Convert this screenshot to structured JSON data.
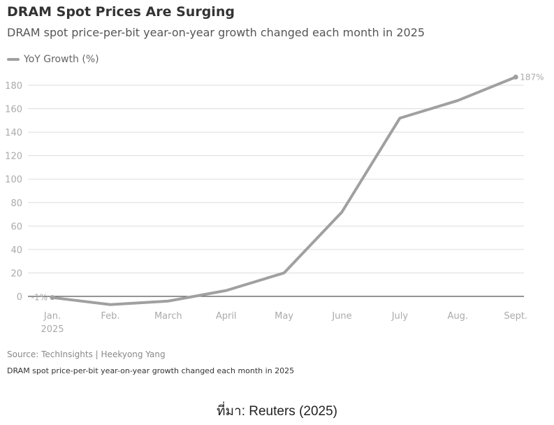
{
  "title": "DRAM Spot Prices Are Surging",
  "subtitle": "DRAM spot price-per-bit year-on-year growth changed each month in 2025",
  "legend": "YoY Growth (%)",
  "source": "Source: TechInsights | Heekyong Yang",
  "note": "DRAM spot price-per-bit year-on-year growth changed each month in 2025",
  "credit": "ที่มา: Reuters (2025)",
  "chart_data": {
    "type": "line",
    "title": "DRAM Spot Prices Are Surging",
    "xlabel": "",
    "ylabel": "",
    "categories": [
      "Jan.|2025",
      "Feb.",
      "March",
      "April",
      "May",
      "June",
      "July",
      "Aug.",
      "Sept."
    ],
    "series": [
      {
        "name": "YoY Growth (%)",
        "values": [
          -1,
          -7,
          -4,
          5,
          20,
          72,
          152,
          167,
          187
        ],
        "color": "#a0a0a0"
      }
    ],
    "yticks": [
      0,
      20,
      40,
      60,
      80,
      100,
      120,
      140,
      160,
      180
    ],
    "ylim": [
      -10,
      190
    ],
    "grid": true,
    "annotations": [
      {
        "label": "-1%",
        "index": 0
      },
      {
        "label": "187%",
        "index": 8
      }
    ],
    "legend_position": "top-left"
  }
}
